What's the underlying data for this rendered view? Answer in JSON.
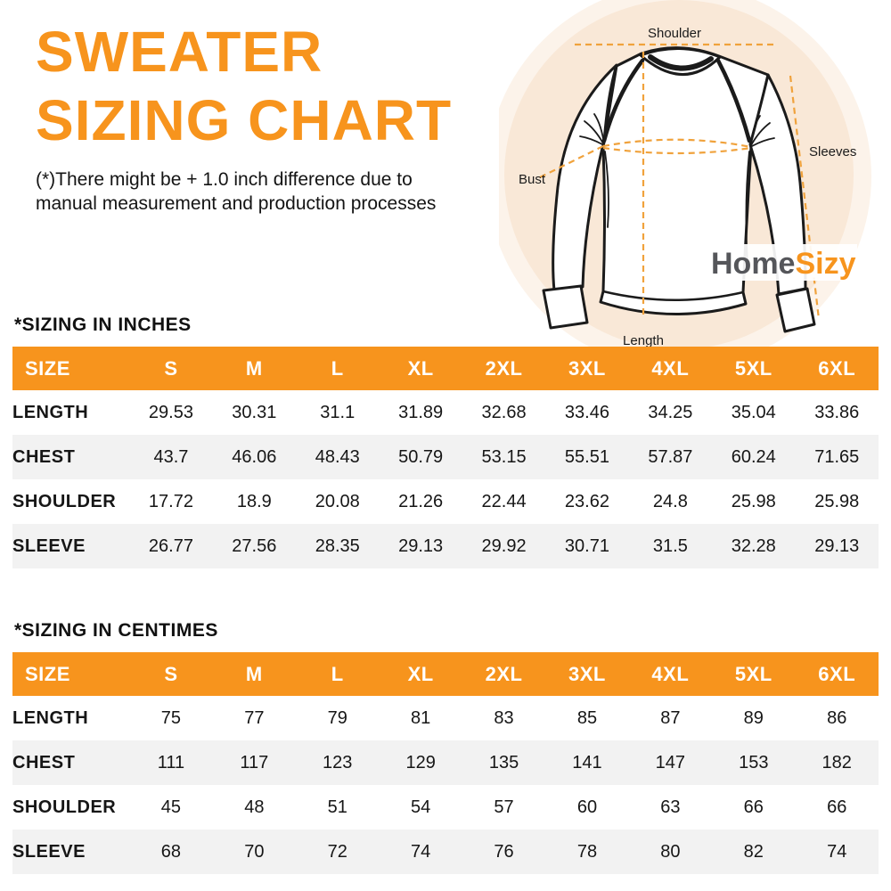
{
  "header": {
    "title_line1": "SWEATER",
    "title_line2": "SIZING CHART",
    "disclaimer_line1": "(*)There might be + 1.0 inch difference due to",
    "disclaimer_line2": "manual measurement and production processes"
  },
  "diagram": {
    "labels": {
      "shoulder": "Shoulder",
      "sleeves": "Sleeves",
      "bust": "Bust",
      "length": "Length"
    },
    "logo": {
      "part1": "Home",
      "part2": "Sizy"
    }
  },
  "colors": {
    "accent_orange": "#F7941D",
    "dash_orange": "#F0A23C",
    "logo_gray": "#55565A",
    "row_alt_gray": "#F2F2F2",
    "circle_outer": "#FCF3EA",
    "circle_inner": "#F9E8D7"
  },
  "tables": [
    {
      "title": "*SIZING IN INCHES",
      "columns": [
        "SIZE",
        "S",
        "M",
        "L",
        "XL",
        "2XL",
        "3XL",
        "4XL",
        "5XL",
        "6XL"
      ],
      "rows": [
        {
          "label": "LENGTH",
          "values": [
            "29.53",
            "30.31",
            "31.1",
            "31.89",
            "32.68",
            "33.46",
            "34.25",
            "35.04",
            "33.86"
          ]
        },
        {
          "label": "CHEST",
          "values": [
            "43.7",
            "46.06",
            "48.43",
            "50.79",
            "53.15",
            "55.51",
            "57.87",
            "60.24",
            "71.65"
          ]
        },
        {
          "label": "SHOULDER",
          "values": [
            "17.72",
            "18.9",
            "20.08",
            "21.26",
            "22.44",
            "23.62",
            "24.8",
            "25.98",
            "25.98"
          ]
        },
        {
          "label": "SLEEVE",
          "values": [
            "26.77",
            "27.56",
            "28.35",
            "29.13",
            "29.92",
            "30.71",
            "31.5",
            "32.28",
            "29.13"
          ]
        }
      ]
    },
    {
      "title": "*SIZING IN CENTIMES",
      "columns": [
        "SIZE",
        "S",
        "M",
        "L",
        "XL",
        "2XL",
        "3XL",
        "4XL",
        "5XL",
        "6XL"
      ],
      "rows": [
        {
          "label": "LENGTH",
          "values": [
            "75",
            "77",
            "79",
            "81",
            "83",
            "85",
            "87",
            "89",
            "86"
          ]
        },
        {
          "label": "CHEST",
          "values": [
            "111",
            "117",
            "123",
            "129",
            "135",
            "141",
            "147",
            "153",
            "182"
          ]
        },
        {
          "label": "SHOULDER",
          "values": [
            "45",
            "48",
            "51",
            "54",
            "57",
            "60",
            "63",
            "66",
            "66"
          ]
        },
        {
          "label": "SLEEVE",
          "values": [
            "68",
            "70",
            "72",
            "74",
            "76",
            "78",
            "80",
            "82",
            "74"
          ]
        }
      ]
    }
  ]
}
